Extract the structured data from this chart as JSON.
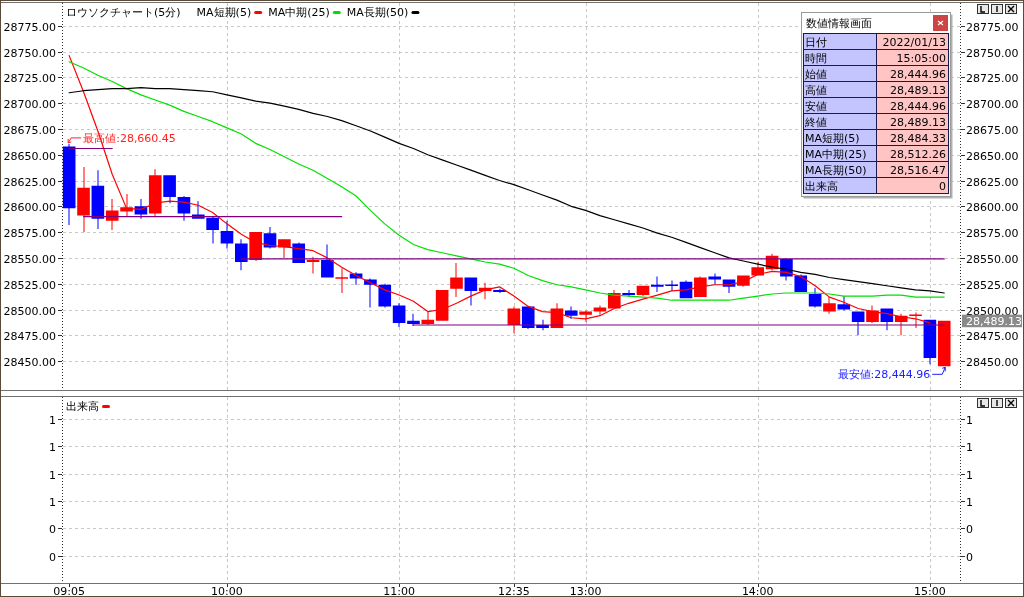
{
  "chart_data": [
    {
      "type": "candlestick",
      "title": "ロウソクチャート(5分)",
      "legend": "top left",
      "grid": true,
      "tick_labels": "y",
      "categories": [
        "09:05",
        null,
        null,
        null,
        null,
        null,
        null,
        null,
        null,
        null,
        null,
        "10:00",
        null,
        null,
        null,
        null,
        null,
        null,
        null,
        null,
        null,
        null,
        null,
        "11:00",
        null,
        null,
        null,
        null,
        null,
        null,
        null,
        "12:35",
        null,
        null,
        null,
        null,
        "13:00",
        null,
        null,
        null,
        null,
        null,
        null,
        null,
        null,
        null,
        null,
        null,
        "14:00",
        null,
        null,
        null,
        null,
        null,
        null,
        null,
        null,
        null,
        null,
        null,
        "15:00",
        null
      ],
      "ohlc": [
        [
          28658,
          28660.45,
          28582,
          28598
        ],
        [
          28591,
          28638,
          28575,
          28618
        ],
        [
          28620,
          28635,
          28578,
          28588
        ],
        [
          28586,
          28607,
          28577,
          28596
        ],
        [
          28595,
          28612,
          28590,
          28599
        ],
        [
          28600,
          28607,
          28588,
          28592
        ],
        [
          28593,
          28636,
          28590,
          28630
        ],
        [
          28630,
          28630,
          28603,
          28609
        ],
        [
          28609,
          28610,
          28586,
          28593
        ],
        [
          28592,
          28605,
          28588,
          28588
        ],
        [
          28589,
          28590,
          28564,
          28577
        ],
        [
          28576,
          28586,
          28559,
          28564
        ],
        [
          28564,
          28568,
          28538,
          28546
        ],
        [
          28548,
          28575,
          28547,
          28575
        ],
        [
          28574,
          28580,
          28559,
          28560
        ],
        [
          28560,
          28568,
          28550,
          28568
        ],
        [
          28564,
          28565,
          28545,
          28545
        ],
        [
          28546,
          28551,
          28535,
          28548
        ],
        [
          28548,
          28563,
          28531,
          28531
        ],
        [
          28530,
          28540,
          28516,
          28531
        ],
        [
          28535,
          28536,
          28524,
          28530
        ],
        [
          28529,
          28530,
          28502,
          28524
        ],
        [
          28524,
          28525,
          28502,
          28503
        ],
        [
          28504,
          28506,
          28483,
          28487
        ],
        [
          28489,
          28496,
          28484,
          28486
        ],
        [
          28486,
          28498,
          28485,
          28490
        ],
        [
          28489,
          28519,
          28489,
          28519
        ],
        [
          28520,
          28545,
          28512,
          28531
        ],
        [
          28531,
          28531,
          28504,
          28518
        ],
        [
          28518,
          28526,
          28510,
          28521
        ],
        [
          28519,
          28520,
          28516,
          28517
        ],
        [
          28485,
          28503,
          28477,
          28501
        ],
        [
          28503,
          28503,
          28481,
          28482
        ],
        [
          28485,
          28490,
          28480,
          28482
        ],
        [
          28482,
          28506,
          28482,
          28501
        ],
        [
          28499,
          28503,
          28491,
          28494
        ],
        [
          28495,
          28499,
          28488,
          28498
        ],
        [
          28498,
          28504,
          28495,
          28502
        ],
        [
          28501,
          28519,
          28501,
          28516
        ],
        [
          28516,
          28519,
          28512,
          28514
        ],
        [
          28514,
          28523,
          28513,
          28523
        ],
        [
          28524,
          28532,
          28517,
          28522
        ],
        [
          28524,
          28528,
          28518,
          28523
        ],
        [
          28527,
          28528,
          28511,
          28511
        ],
        [
          28512,
          28532,
          28512,
          28531
        ],
        [
          28532,
          28535,
          28524,
          28529
        ],
        [
          28529,
          28529,
          28516,
          28522
        ],
        [
          28523,
          28533,
          28522,
          28533
        ],
        [
          28533,
          28546,
          28533,
          28541
        ],
        [
          28539,
          28554,
          28538,
          28552
        ],
        [
          28549,
          28550,
          28528,
          28532
        ],
        [
          28533,
          28534,
          28517,
          28517
        ],
        [
          28515,
          28521,
          28502,
          28503
        ],
        [
          28498,
          28512,
          28496,
          28506
        ],
        [
          28505,
          28513,
          28499,
          28500
        ],
        [
          28498,
          28498,
          28475,
          28488
        ],
        [
          28488,
          28504,
          28487,
          28499
        ],
        [
          28501,
          28501,
          28480,
          28488
        ],
        [
          28488,
          28496,
          28475,
          28494
        ],
        [
          28494,
          28497,
          28482,
          28495
        ],
        [
          28490,
          28490,
          28447,
          28453
        ],
        [
          28444.96,
          28489.13,
          28444.96,
          28489.13
        ]
      ],
      "colors": [
        "#0000ff",
        "#ff0000",
        "#0000ff",
        "#ff0000",
        "#ff0000",
        "#0000ff",
        "#ff0000",
        "#0000ff",
        "#0000ff",
        "#0000ff",
        "#0000ff",
        "#0000ff",
        "#0000ff",
        "#ff0000",
        "#0000ff",
        "#ff0000",
        "#0000ff",
        "#ff0000",
        "#0000ff",
        "#ff0000",
        "#0000ff",
        "#0000ff",
        "#0000ff",
        "#0000ff",
        "#0000ff",
        "#ff0000",
        "#ff0000",
        "#ff0000",
        "#0000ff",
        "#ff0000",
        "#0000ff",
        "#ff0000",
        "#0000ff",
        "#0000ff",
        "#ff0000",
        "#0000ff",
        "#ff0000",
        "#ff0000",
        "#ff0000",
        "#0000ff",
        "#ff0000",
        "#0000ff",
        "#0000ff",
        "#0000ff",
        "#ff0000",
        "#0000ff",
        "#0000ff",
        "#ff0000",
        "#ff0000",
        "#ff0000",
        "#0000ff",
        "#0000ff",
        "#0000ff",
        "#ff0000",
        "#0000ff",
        "#0000ff",
        "#ff0000",
        "#0000ff",
        "#ff0000",
        "#ff0000",
        "#0000ff",
        "#ff0000"
      ],
      "series": [
        {
          "name": "MA短期(5)",
          "type": "line",
          "color": "#ff0000",
          "values": [
            28746,
            28711,
            28673,
            28631,
            28598,
            28597,
            28603,
            28605,
            28604,
            28601,
            28594,
            28583,
            28573,
            28565,
            28562,
            28561,
            28559,
            28557,
            28550,
            28541,
            28533,
            28526,
            28519,
            28514,
            28508,
            28498,
            28500,
            28506,
            28513,
            28519,
            28522,
            28513,
            28503,
            28498,
            28497,
            28492,
            28491,
            28494,
            28501,
            28506,
            28510,
            28514,
            28518,
            28519,
            28522,
            28524,
            28524,
            28527,
            28534,
            28537,
            28536,
            28532,
            28523,
            28512,
            28507,
            28501,
            28498,
            28496,
            28493,
            28491,
            28487,
            null
          ]
        },
        {
          "name": "MA中期(25)",
          "type": "line",
          "color": "#00e000",
          "values": [
            28740,
            28734,
            28727,
            28721,
            28714,
            28708,
            28703,
            28698,
            28692,
            28687,
            28682,
            28676,
            28670,
            28661,
            28655,
            28648,
            28641,
            28635,
            28627,
            28619,
            28610,
            28596,
            28583,
            28572,
            28563,
            28558,
            28555,
            28552,
            28549,
            28546,
            28544,
            28540,
            28533,
            28528,
            28524,
            28522,
            28519,
            28516,
            28514,
            28513,
            28512,
            28511,
            28509,
            28509,
            28509,
            28509,
            28509,
            28511,
            28513,
            28515,
            28516,
            28516,
            28516,
            28515,
            28513,
            28513,
            28513,
            28514,
            28514,
            28512,
            28512,
            28512
          ]
        },
        {
          "name": "MA長期(50)",
          "type": "line",
          "color": "#000000",
          "values": [
            28710,
            28712,
            28713,
            28714,
            28714,
            28715,
            28714,
            28714,
            28713,
            28712,
            28711,
            28708,
            28705,
            28702,
            28700,
            28697,
            28694,
            28690,
            28687,
            28683,
            28678,
            28673,
            28667,
            28661,
            28656,
            28650,
            28645,
            28640,
            28635,
            28630,
            28625,
            28621,
            28616,
            28611,
            28606,
            28600,
            28596,
            28591,
            28587,
            28583,
            28579,
            28574,
            28570,
            28565,
            28560,
            28555,
            28550,
            28547,
            28544,
            28541,
            28539,
            28536,
            28534,
            28531,
            28529,
            28527,
            28525,
            28523,
            28521,
            28519,
            28518,
            28516
          ]
        },
        {
          "type": "line",
          "color": "#800080",
          "values": [
            28656,
            28656,
            28656,
            28656,
            null,
            null,
            null,
            null,
            null,
            null,
            null,
            null,
            null,
            null,
            null,
            null,
            null,
            null,
            null,
            null,
            null,
            null,
            null,
            null,
            null,
            null,
            null,
            null,
            null,
            null,
            null,
            null,
            null,
            null,
            null,
            null,
            null,
            null,
            null,
            null,
            null,
            null,
            null,
            null,
            null,
            null,
            null,
            null,
            null,
            null,
            null,
            null,
            null,
            null,
            null,
            null,
            null,
            null,
            null,
            null,
            null,
            null
          ]
        },
        {
          "type": "line",
          "color": "#800080",
          "values": [
            null,
            28590,
            28590,
            28590,
            28590,
            28590,
            28590,
            28590,
            28590,
            28590,
            28590,
            28590,
            28590,
            28590,
            28590,
            28590,
            28590,
            28590,
            28590,
            28590,
            null,
            null,
            null,
            null,
            null,
            null,
            null,
            null,
            null,
            null,
            null,
            null,
            null,
            null,
            null,
            null,
            null,
            null,
            null,
            null,
            null,
            null,
            null,
            null,
            null,
            null,
            null,
            null,
            null,
            null,
            null,
            null,
            null,
            null,
            null,
            null,
            null,
            null,
            null,
            null,
            null,
            null
          ]
        },
        {
          "type": "line",
          "color": "#800080",
          "values": [
            null,
            null,
            null,
            null,
            null,
            null,
            null,
            null,
            null,
            null,
            null,
            null,
            28549,
            28549,
            28549,
            28549,
            28549,
            28549,
            28549,
            28549,
            28549,
            28549,
            28549,
            28549,
            28549,
            28549,
            28549,
            28549,
            28549,
            28549,
            28549,
            28549,
            28549,
            28549,
            28549,
            28549,
            28549,
            28549,
            28549,
            28549,
            28549,
            28549,
            28549,
            28549,
            28549,
            28549,
            28549,
            28549,
            28549,
            28549,
            28549,
            28549,
            28549,
            28549,
            28549,
            28549,
            28549,
            28549,
            28549,
            28549,
            28549,
            28549
          ]
        },
        {
          "type": "line",
          "color": "#800080",
          "values": [
            null,
            null,
            null,
            null,
            null,
            null,
            null,
            null,
            null,
            null,
            null,
            null,
            null,
            null,
            null,
            null,
            null,
            null,
            null,
            null,
            null,
            null,
            null,
            null,
            28485,
            28485,
            28485,
            28485,
            28485,
            28485,
            28485,
            28485,
            28485,
            28485,
            28485,
            28485,
            28485,
            28485,
            28485,
            28485,
            28485,
            28485,
            28485,
            28485,
            28485,
            28485,
            28485,
            28485,
            28485,
            28485,
            28485,
            28485,
            28485,
            28485,
            28485,
            28485,
            28485,
            28485,
            28485,
            28485,
            28485,
            28485
          ]
        }
      ],
      "annotations": [
        {
          "text": "最高値:28,660.45",
          "x": "09:05",
          "y": 28660.45
        },
        "最安値:28,444.96",
        "28,489.13"
      ],
      "ylim": [
        28422,
        28797
      ],
      "yticks": [
        {
          "value": 28450,
          "label": "28450.00"
        },
        {
          "value": 28475,
          "label": "28475.00"
        },
        {
          "value": 28500,
          "label": "28500.00"
        },
        {
          "value": 28525,
          "label": "28525.00"
        },
        {
          "value": 28550,
          "label": "28550.00"
        },
        {
          "value": 28575,
          "label": "28575.00"
        },
        {
          "value": 28600,
          "label": "28600.00"
        },
        {
          "value": 28625,
          "label": "28625.00"
        },
        {
          "value": 28650,
          "label": "28650.00"
        },
        {
          "value": 28675,
          "label": "28675.00"
        },
        {
          "value": 28700,
          "label": "28700.00"
        },
        {
          "value": 28725,
          "label": "28725.00"
        },
        {
          "value": 28750,
          "label": "28750.00"
        },
        {
          "value": 28775,
          "label": "28775.00"
        }
      ],
      "y2lim": [
        28422,
        28797
      ],
      "y2ticks": [
        {
          "value": 28450,
          "label": "28450.00"
        },
        {
          "value": 28475,
          "label": "28475.00"
        },
        {
          "value": 28500,
          "label": "28500.00"
        },
        {
          "value": 28525,
          "label": "28525.00"
        },
        {
          "value": 28550,
          "label": "28550.00"
        },
        {
          "value": 28575,
          "label": "28575.00"
        },
        {
          "value": 28600,
          "label": "28600.00"
        },
        {
          "value": 28625,
          "label": "28625.00"
        },
        {
          "value": 28650,
          "label": "28650.00"
        },
        {
          "value": 28675,
          "label": "28675.00"
        },
        {
          "value": 28700,
          "label": "28700.00"
        },
        {
          "value": 28725,
          "label": "28725.00"
        },
        {
          "value": 28750,
          "label": "28750.00"
        },
        {
          "value": 28775,
          "label": "28775.00"
        }
      ]
    },
    {
      "type": "other",
      "title": "数値情報画面",
      "annotations": [
        "日付",
        "2022/01/13",
        "時間",
        "15:05:00",
        "始値",
        "28,444.96",
        "高値",
        "28,489.13",
        "安値",
        "28,444.96",
        "終値",
        "28,489.13",
        "MA短期(5)",
        "28,484.33",
        "MA中期(25)",
        "28,512.26",
        "MA長期(50)",
        "28,516.47",
        "出来高",
        "0"
      ]
    },
    {
      "type": "bar",
      "legend": "top left",
      "grid": true,
      "categories": [
        "09:05",
        null,
        null,
        null,
        null,
        null,
        null,
        null,
        null,
        null,
        null,
        "10:00",
        null,
        null,
        null,
        null,
        null,
        null,
        null,
        null,
        null,
        null,
        null,
        "11:00",
        null,
        null,
        null,
        null,
        null,
        null,
        null,
        "12:35",
        null,
        null,
        null,
        null,
        "13:00",
        null,
        null,
        null,
        null,
        null,
        null,
        null,
        null,
        null,
        null,
        null,
        "14:00",
        null,
        null,
        null,
        null,
        null,
        null,
        null,
        null,
        null,
        null,
        null,
        "15:00",
        null
      ],
      "series": [
        {
          "name": "出来高",
          "color": "#ff0000",
          "values": [
            null,
            null,
            null,
            null,
            null,
            null,
            null,
            null,
            null,
            null,
            null,
            null,
            null,
            null,
            null,
            null,
            null,
            null,
            null,
            null,
            null,
            null,
            null,
            null,
            null,
            null,
            null,
            null,
            null,
            null,
            null,
            null,
            null,
            null,
            null,
            null,
            null,
            null,
            null,
            null,
            null,
            null,
            null,
            null,
            null,
            null,
            null,
            null,
            null,
            null,
            null,
            null,
            null,
            null,
            null,
            null,
            null,
            null,
            null,
            null,
            null,
            null
          ]
        }
      ],
      "ylim": [
        0,
        1.36
      ],
      "yticks": [
        {
          "value": 0.2,
          "label": "0"
        },
        {
          "value": 0.4,
          "label": "0"
        },
        {
          "value": 0.6,
          "label": "1"
        },
        {
          "value": 0.8,
          "label": "1"
        },
        {
          "value": 1.0,
          "label": "1"
        },
        {
          "value": 1.2,
          "label": "1"
        }
      ],
      "y2lim": [
        0,
        1.36
      ],
      "y2ticks": [
        {
          "value": 0.2,
          "label": "0"
        },
        {
          "value": 0.4,
          "label": "0"
        },
        {
          "value": 0.6,
          "label": "1"
        },
        {
          "value": 0.8,
          "label": "1"
        },
        {
          "value": 1.0,
          "label": "1"
        },
        {
          "value": 1.2,
          "label": "1"
        }
      ]
    }
  ]
}
